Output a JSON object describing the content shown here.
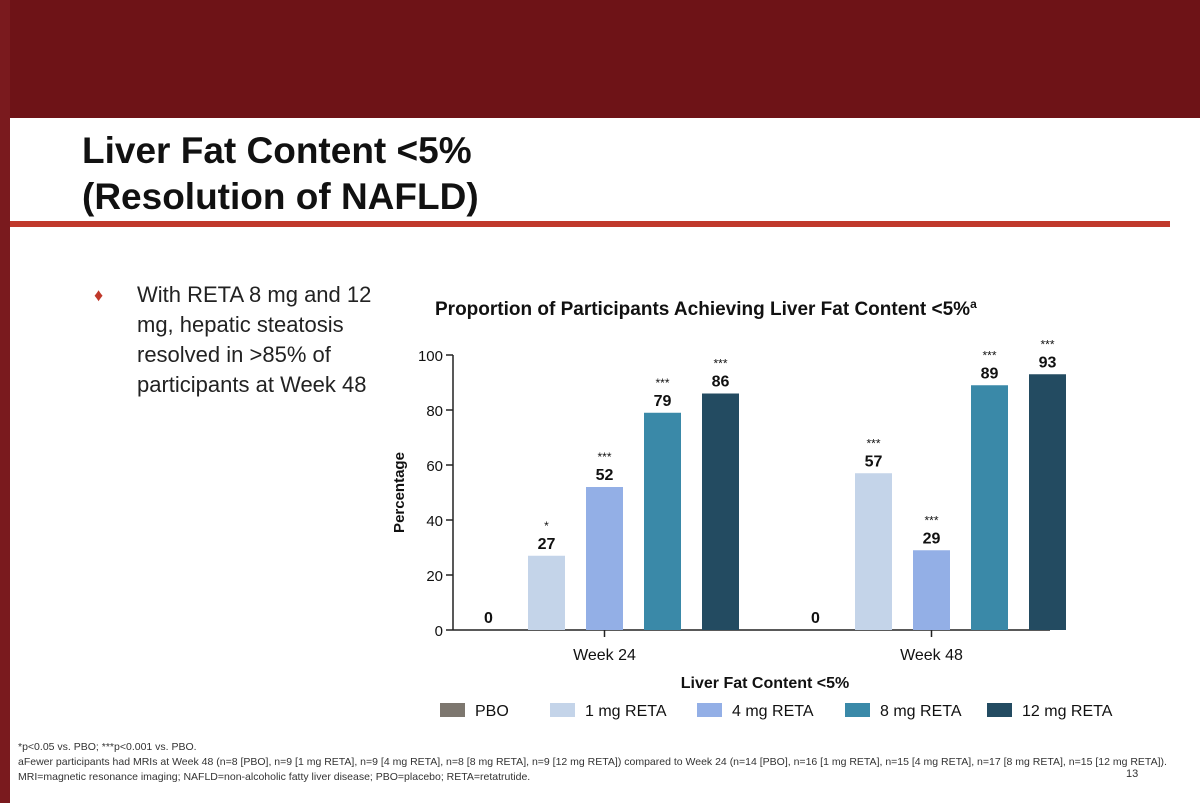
{
  "slide": {
    "title_line1": "Liver Fat Content <5%",
    "title_line2": "(Resolution of NAFLD)",
    "bullet": "With RETA 8 mg and 12 mg, hepatic steatosis resolved in >85% of participants at Week 48",
    "footnote_1": "*p<0.05 vs. PBO; ***p<0.001 vs. PBO.",
    "footnote_2": "aFewer participants had MRIs at Week 48 (n=8 [PBO], n=9 [1 mg RETA], n=9 [4 mg RETA], n=8 [8 mg RETA], n=9 [12 mg RETA]) compared to Week 24 (n=14 [PBO], n=16 [1 mg RETA], n=15 [4 mg RETA], n=17 [8 mg RETA], n=15 [12 mg RETA]). MRI=magnetic resonance imaging; NAFLD=non-alcoholic fatty liver disease; PBO=placebo; RETA=retatrutide.",
    "page_number": "13"
  },
  "chart_data": {
    "type": "bar",
    "title": "Proportion of Participants Achieving Liver Fat Content <5%",
    "title_superscript": "a",
    "xlabel": "Liver Fat Content <5%",
    "ylabel": "Percentage",
    "ylim": [
      0,
      100
    ],
    "yticks": [
      0,
      20,
      40,
      60,
      80,
      100
    ],
    "categories": [
      "Week 24",
      "Week 48"
    ],
    "series": [
      {
        "name": "PBO",
        "color": "#7d776f",
        "values": [
          0,
          0
        ],
        "significance": [
          "",
          ""
        ]
      },
      {
        "name": "1 mg RETA",
        "color": "#c4d4e9",
        "values": [
          27,
          57
        ],
        "significance": [
          "*",
          "***"
        ]
      },
      {
        "name": "4 mg RETA",
        "color": "#93afe6",
        "values": [
          52,
          29
        ],
        "significance": [
          "***",
          "***"
        ]
      },
      {
        "name": "8 mg RETA",
        "color": "#3a89a8",
        "values": [
          79,
          89
        ],
        "significance": [
          "***",
          "***"
        ]
      },
      {
        "name": "12 mg RETA",
        "color": "#234b61",
        "values": [
          86,
          93
        ],
        "significance": [
          "***",
          "***"
        ]
      }
    ],
    "legend_position": "bottom"
  }
}
